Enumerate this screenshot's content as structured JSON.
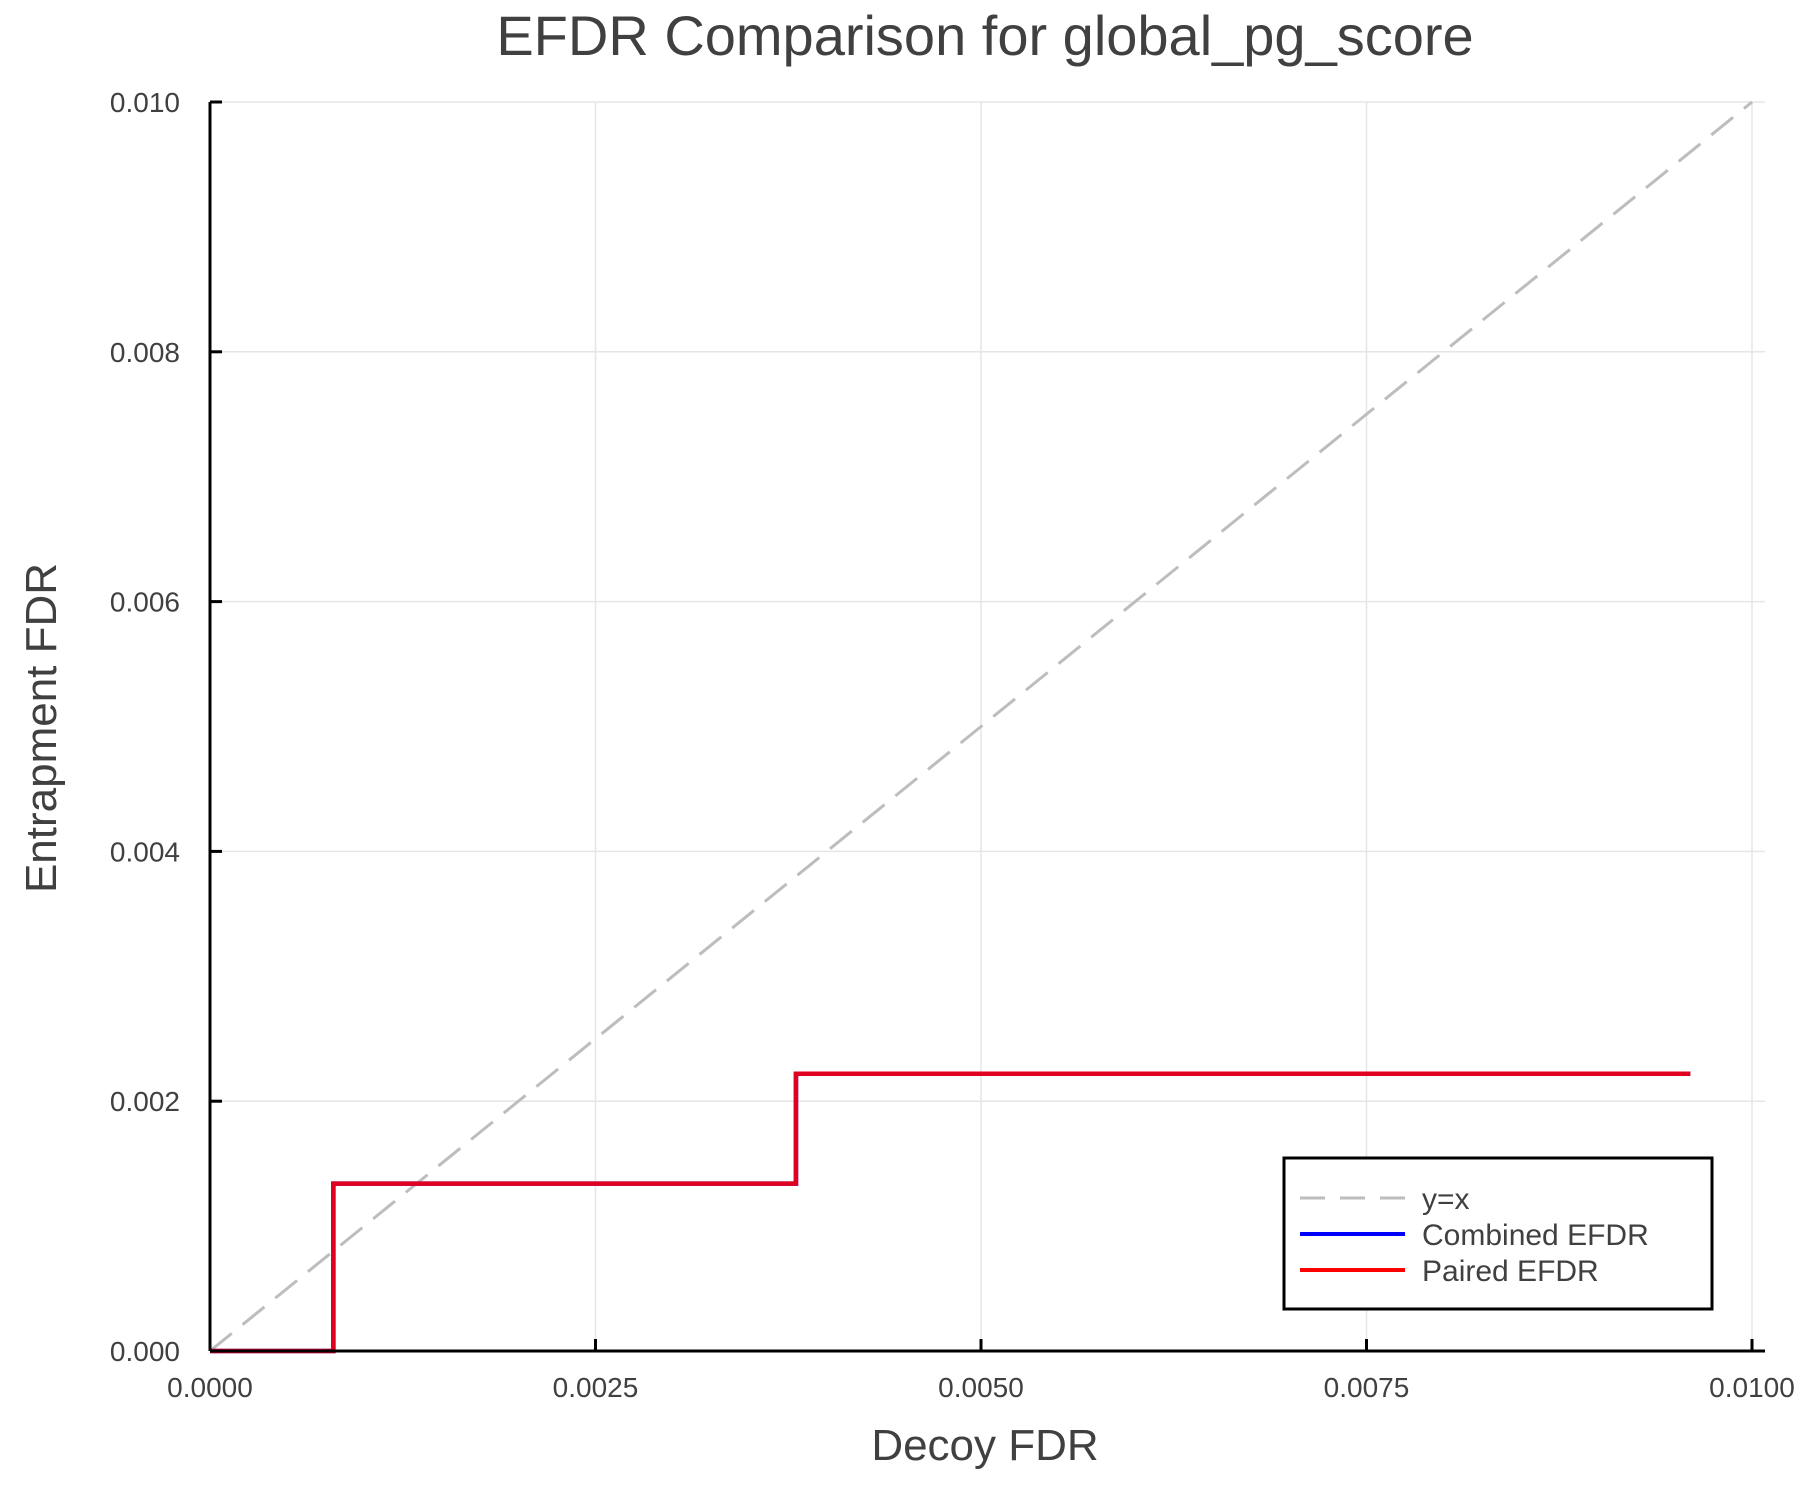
{
  "chart_data": {
    "type": "line",
    "title": "EFDR Comparison for global_pg_score",
    "xlabel": "Decoy FDR",
    "ylabel": "Entrapment FDR",
    "xlim": [
      0,
      0.01
    ],
    "ylim": [
      0,
      0.01
    ],
    "xticks": [
      0.0,
      0.0025,
      0.005,
      0.0075,
      0.01
    ],
    "xtick_labels": [
      "0.0000",
      "0.0025",
      "0.0050",
      "0.0075",
      "0.0100"
    ],
    "yticks": [
      0.0,
      0.002,
      0.004,
      0.006,
      0.008,
      0.01
    ],
    "ytick_labels": [
      "0.000",
      "0.002",
      "0.004",
      "0.006",
      "0.008",
      "0.010"
    ],
    "grid": true,
    "legend_position": "bottom-right",
    "series": [
      {
        "name": "y=x",
        "style": "dashed",
        "color": "#bdbdbd",
        "x": [
          0.0,
          0.01
        ],
        "y": [
          0.0,
          0.01
        ]
      },
      {
        "name": "Combined EFDR",
        "style": "step",
        "color": "#0000ff",
        "x": [
          0.0,
          0.0008,
          0.0008,
          0.0038,
          0.0038,
          0.0096
        ],
        "y": [
          0.0,
          0.0,
          0.00134,
          0.00134,
          0.00222,
          0.00222
        ]
      },
      {
        "name": "Paired EFDR",
        "style": "step",
        "color": "#ff0000",
        "x": [
          0.0,
          0.0008,
          0.0008,
          0.0038,
          0.0038,
          0.0096
        ],
        "y": [
          0.0,
          0.0,
          0.00134,
          0.00134,
          0.00222,
          0.00222
        ]
      }
    ]
  },
  "legend": {
    "items": [
      {
        "label": "y=x",
        "color": "#bdbdbd",
        "dashed": true
      },
      {
        "label": "Combined EFDR",
        "color": "#0000ff",
        "dashed": false
      },
      {
        "label": "Paired EFDR",
        "color": "#ff0000",
        "dashed": false
      }
    ]
  }
}
